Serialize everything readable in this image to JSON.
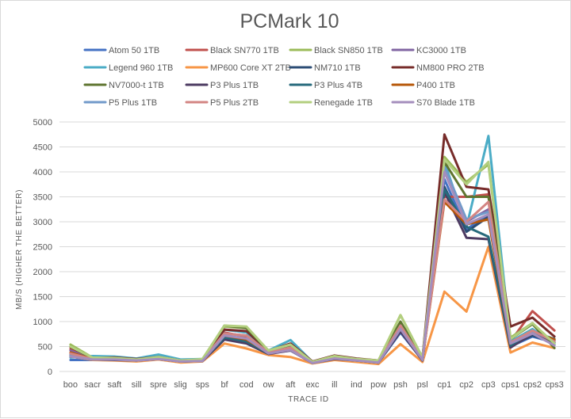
{
  "chart_data": {
    "type": "line",
    "title": "PCMark 10",
    "xlabel": "TRACE ID",
    "ylabel": "MB/S (HIGHER THE BETTER)",
    "ylim": [
      0,
      5000
    ],
    "yticks": [
      0,
      500,
      1000,
      1500,
      2000,
      2500,
      3000,
      3500,
      4000,
      4500,
      5000
    ],
    "grid": true,
    "legend_position": "top",
    "categories": [
      "boo",
      "sacr",
      "saft",
      "sill",
      "spre",
      "slig",
      "sps",
      "bf",
      "cod",
      "ow",
      "aft",
      "exc",
      "ill",
      "ind",
      "pow",
      "psh",
      "psl",
      "cp1",
      "cp2",
      "cp3",
      "cps1",
      "cps2",
      "cps3"
    ],
    "series": [
      {
        "name": "Atom 50 1TB",
        "color": "#4472c4",
        "values": [
          230,
          230,
          230,
          220,
          250,
          200,
          210,
          700,
          640,
          360,
          420,
          170,
          260,
          220,
          180,
          780,
          230,
          3850,
          2850,
          3150,
          500,
          700,
          580
        ]
      },
      {
        "name": "Black SN770 1TB",
        "color": "#c0504d",
        "values": [
          450,
          260,
          270,
          240,
          280,
          210,
          230,
          780,
          700,
          400,
          500,
          180,
          300,
          240,
          200,
          900,
          250,
          3500,
          3500,
          3550,
          600,
          1210,
          820
        ]
      },
      {
        "name": "Black SN850 1TB",
        "color": "#9bbb59",
        "values": [
          540,
          280,
          260,
          240,
          300,
          230,
          250,
          900,
          870,
          420,
          550,
          190,
          310,
          250,
          220,
          1130,
          280,
          4300,
          3800,
          4150,
          680,
          970,
          550
        ]
      },
      {
        "name": "KC3000 1TB",
        "color": "#8064a2",
        "values": [
          420,
          240,
          250,
          230,
          260,
          200,
          220,
          760,
          720,
          380,
          480,
          170,
          280,
          230,
          190,
          920,
          240,
          4050,
          3000,
          3250,
          560,
          800,
          600
        ]
      },
      {
        "name": "Legend 960 1TB",
        "color": "#4bacc6",
        "values": [
          280,
          310,
          300,
          260,
          340,
          240,
          250,
          840,
          780,
          420,
          630,
          190,
          300,
          250,
          210,
          950,
          250,
          4200,
          2900,
          4720,
          600,
          850,
          540
        ]
      },
      {
        "name": "MP600 Core XT 2TB",
        "color": "#f79646",
        "values": [
          300,
          230,
          220,
          200,
          240,
          180,
          200,
          560,
          460,
          330,
          290,
          160,
          230,
          190,
          150,
          550,
          190,
          1600,
          1200,
          2500,
          380,
          580,
          470
        ]
      },
      {
        "name": "NM710 1TB",
        "color": "#2c4d75",
        "values": [
          300,
          240,
          240,
          220,
          250,
          200,
          210,
          680,
          590,
          360,
          430,
          170,
          260,
          220,
          180,
          800,
          220,
          3700,
          2800,
          3100,
          520,
          720,
          580
        ]
      },
      {
        "name": "NM800 PRO 2TB",
        "color": "#772c2a",
        "values": [
          490,
          270,
          280,
          250,
          290,
          220,
          240,
          840,
          810,
          410,
          560,
          200,
          320,
          260,
          220,
          980,
          270,
          4750,
          3700,
          3650,
          900,
          1080,
          700
        ]
      },
      {
        "name": "NV7000-t 1TB",
        "color": "#5f7530",
        "values": [
          500,
          270,
          270,
          240,
          280,
          210,
          240,
          920,
          870,
          410,
          520,
          190,
          300,
          250,
          210,
          1000,
          260,
          4200,
          3500,
          3500,
          650,
          950,
          470
        ]
      },
      {
        "name": "P3 Plus 1TB",
        "color": "#4d3b62",
        "values": [
          320,
          240,
          230,
          220,
          250,
          200,
          210,
          640,
          560,
          350,
          420,
          170,
          250,
          220,
          180,
          810,
          220,
          3600,
          2680,
          2650,
          480,
          760,
          620
        ]
      },
      {
        "name": "P3 Plus 4TB",
        "color": "#276a7c",
        "values": [
          350,
          240,
          240,
          220,
          260,
          200,
          220,
          680,
          600,
          360,
          450,
          170,
          260,
          220,
          180,
          850,
          230,
          3650,
          2900,
          2700,
          520,
          800,
          650
        ]
      },
      {
        "name": "P400 1TB",
        "color": "#b65708",
        "values": [
          380,
          250,
          250,
          230,
          270,
          200,
          220,
          720,
          640,
          370,
          460,
          180,
          270,
          230,
          190,
          880,
          240,
          3400,
          2950,
          3050,
          560,
          800,
          640
        ]
      },
      {
        "name": "P5 Plus 1TB",
        "color": "#729aca",
        "values": [
          330,
          250,
          250,
          230,
          260,
          200,
          220,
          760,
          720,
          380,
          480,
          170,
          280,
          230,
          190,
          920,
          240,
          4100,
          3050,
          3200,
          580,
          810,
          600
        ]
      },
      {
        "name": "P5 Plus 2TB",
        "color": "#d38583",
        "values": [
          360,
          250,
          250,
          230,
          270,
          200,
          230,
          760,
          720,
          380,
          480,
          170,
          280,
          230,
          190,
          920,
          240,
          3450,
          3000,
          3400,
          580,
          820,
          600
        ]
      },
      {
        "name": "Renegade 1TB",
        "color": "#b3cf7f",
        "values": [
          500,
          280,
          270,
          240,
          290,
          220,
          250,
          920,
          900,
          420,
          540,
          190,
          310,
          250,
          220,
          1130,
          280,
          4250,
          3750,
          4200,
          650,
          970,
          560
        ]
      },
      {
        "name": "S70 Blade 1TB",
        "color": "#a48ebd",
        "values": [
          300,
          240,
          240,
          220,
          250,
          200,
          210,
          720,
          660,
          360,
          430,
          170,
          260,
          220,
          180,
          850,
          230,
          4000,
          2950,
          3150,
          560,
          760,
          520
        ]
      }
    ]
  }
}
